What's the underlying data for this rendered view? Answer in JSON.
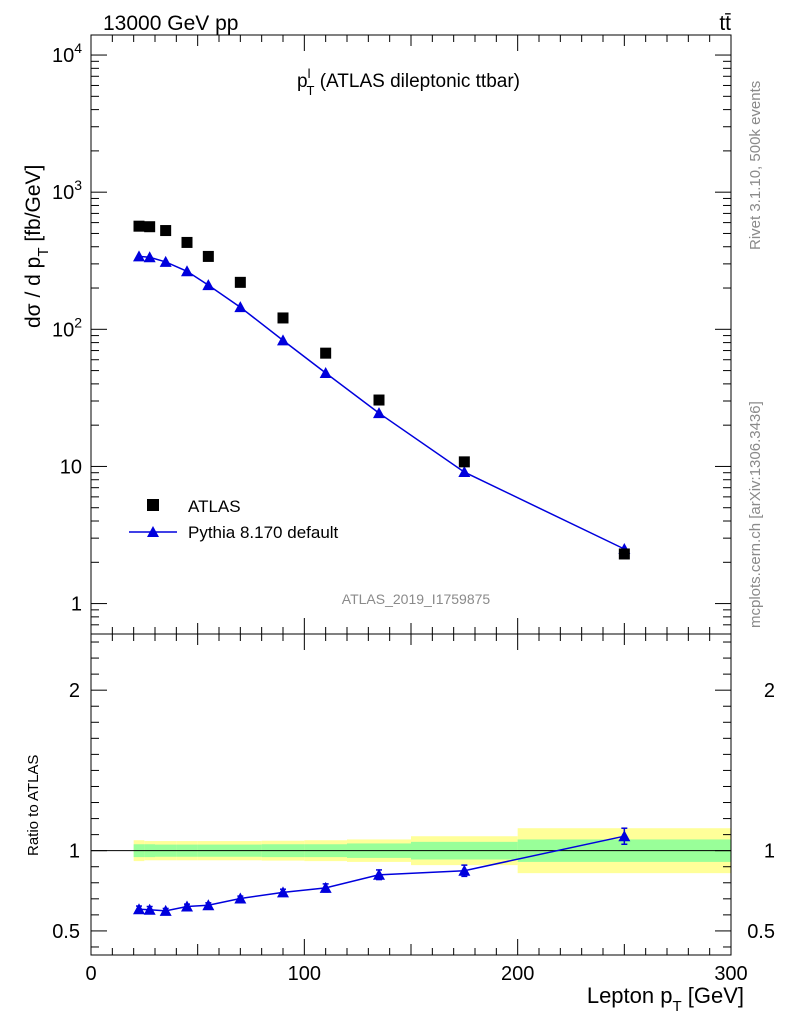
{
  "header": {
    "left": "13000 GeV pp",
    "right": "tt̄"
  },
  "side_labels": {
    "rivet": "Rivet 3.1.10,  500k events",
    "mcplots": "mcplots.cern.ch [arXiv:1306.3436]"
  },
  "watermark": "ATLAS_2019_I1759875",
  "chart_data": [
    {
      "type": "scatter",
      "panel": "main",
      "title_main": "p",
      "title_sup": "l",
      "title_sub": "T",
      "title_rest": " (ATLAS dileptonic ttbar)",
      "ylabel": "dσ / d p",
      "ylabel_sub": "T",
      "ylabel_rest": " [fb/GeV]",
      "yscale": "log",
      "xlim": [
        0,
        300
      ],
      "ylim": [
        0.6,
        14000
      ],
      "y_ticks": [
        {
          "v": 1,
          "base": "1",
          "exp": ""
        },
        {
          "v": 10,
          "base": "10",
          "exp": ""
        },
        {
          "v": 100,
          "base": "10",
          "exp": "2"
        },
        {
          "v": 1000,
          "base": "10",
          "exp": "3"
        },
        {
          "v": 10000,
          "base": "10",
          "exp": "4"
        }
      ],
      "legend_position": "lower-left",
      "series": [
        {
          "name": "ATLAS",
          "marker": "square",
          "color": "#000000",
          "x": [
            22.5,
            27.5,
            35,
            45,
            55,
            70,
            90,
            110,
            135,
            175,
            250
          ],
          "y": [
            565,
            560,
            525,
            430,
            340,
            220,
            121,
            67,
            30.5,
            10.8,
            2.3
          ]
        },
        {
          "name": "Pythia 8.170 default",
          "marker": "triangle",
          "color": "#0000dd",
          "x": [
            22.5,
            27.5,
            35,
            45,
            55,
            70,
            90,
            110,
            135,
            175,
            250
          ],
          "y": [
            340,
            335,
            310,
            265,
            210,
            145,
            83,
            48,
            24.5,
            9.1,
            2.5
          ]
        }
      ]
    },
    {
      "type": "line",
      "panel": "ratio",
      "ylabel": "Ratio to ATLAS",
      "xlabel": "Lepton p",
      "xlabel_sub": "T",
      "xlabel_rest": " [GeV]",
      "xlim": [
        0,
        300
      ],
      "ylim": [
        0.35,
        2.35
      ],
      "x_ticks": [
        0,
        100,
        200,
        300
      ],
      "y_ticks": [
        0.5,
        1,
        2
      ],
      "bands": [
        {
          "x0": 20,
          "x1": 25,
          "y_in": 0.04,
          "y_out": 0.065
        },
        {
          "x0": 25,
          "x1": 30,
          "y_in": 0.04,
          "y_out": 0.06
        },
        {
          "x0": 30,
          "x1": 40,
          "y_in": 0.038,
          "y_out": 0.06
        },
        {
          "x0": 40,
          "x1": 50,
          "y_in": 0.038,
          "y_out": 0.06
        },
        {
          "x0": 50,
          "x1": 60,
          "y_in": 0.038,
          "y_out": 0.06
        },
        {
          "x0": 60,
          "x1": 80,
          "y_in": 0.038,
          "y_out": 0.06
        },
        {
          "x0": 80,
          "x1": 100,
          "y_in": 0.04,
          "y_out": 0.062
        },
        {
          "x0": 100,
          "x1": 120,
          "y_in": 0.04,
          "y_out": 0.065
        },
        {
          "x0": 120,
          "x1": 150,
          "y_in": 0.045,
          "y_out": 0.07
        },
        {
          "x0": 150,
          "x1": 200,
          "y_in": 0.055,
          "y_out": 0.09
        },
        {
          "x0": 200,
          "x1": 300,
          "y_in": 0.07,
          "y_out": 0.14
        }
      ],
      "series": [
        {
          "name": "Pythia 8.170 default",
          "color": "#0000dd",
          "x": [
            22.5,
            27.5,
            35,
            45,
            55,
            70,
            90,
            110,
            135,
            175,
            250
          ],
          "y": [
            0.635,
            0.632,
            0.625,
            0.652,
            0.66,
            0.702,
            0.74,
            0.768,
            0.85,
            0.875,
            1.09
          ],
          "err": [
            0.02,
            0.02,
            0.015,
            0.015,
            0.015,
            0.015,
            0.02,
            0.025,
            0.03,
            0.035,
            0.05
          ]
        }
      ],
      "band_colors": {
        "inner": "#99ff99",
        "outer": "#ffff99"
      }
    }
  ]
}
